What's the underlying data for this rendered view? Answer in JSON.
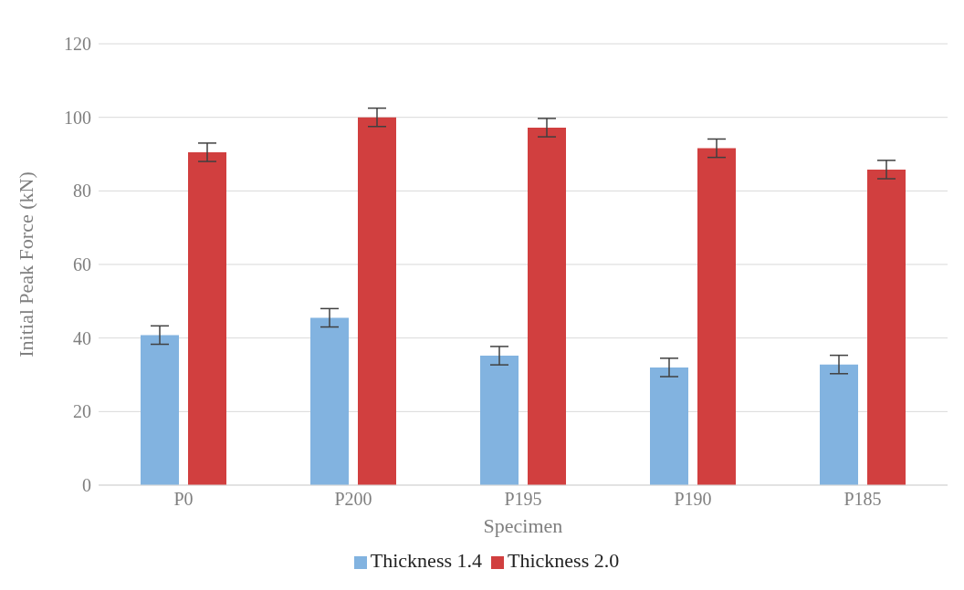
{
  "chart_data": {
    "type": "bar",
    "xlabel": "Specimen",
    "ylabel": "Initial Peak Force  (kN)",
    "categories": [
      "P0",
      "P200",
      "P195",
      "P190",
      "P185"
    ],
    "series": [
      {
        "name": "Thickness 1.4",
        "color": "#82b3e0",
        "values": [
          40.8,
          45.5,
          35.2,
          32,
          32.8
        ],
        "errors": [
          2.5,
          2.5,
          2.5,
          2.5,
          2.5
        ]
      },
      {
        "name": "Thickness 2.0",
        "color": "#d13f3f",
        "values": [
          90.5,
          100,
          97.2,
          91.6,
          85.8
        ],
        "errors": [
          2.5,
          2.5,
          2.5,
          2.5,
          2.5
        ]
      }
    ],
    "ylim": [
      0,
      120
    ],
    "yticks": [
      0,
      20,
      40,
      60,
      80,
      100,
      120
    ],
    "grid": "y",
    "legend": "bottom"
  }
}
